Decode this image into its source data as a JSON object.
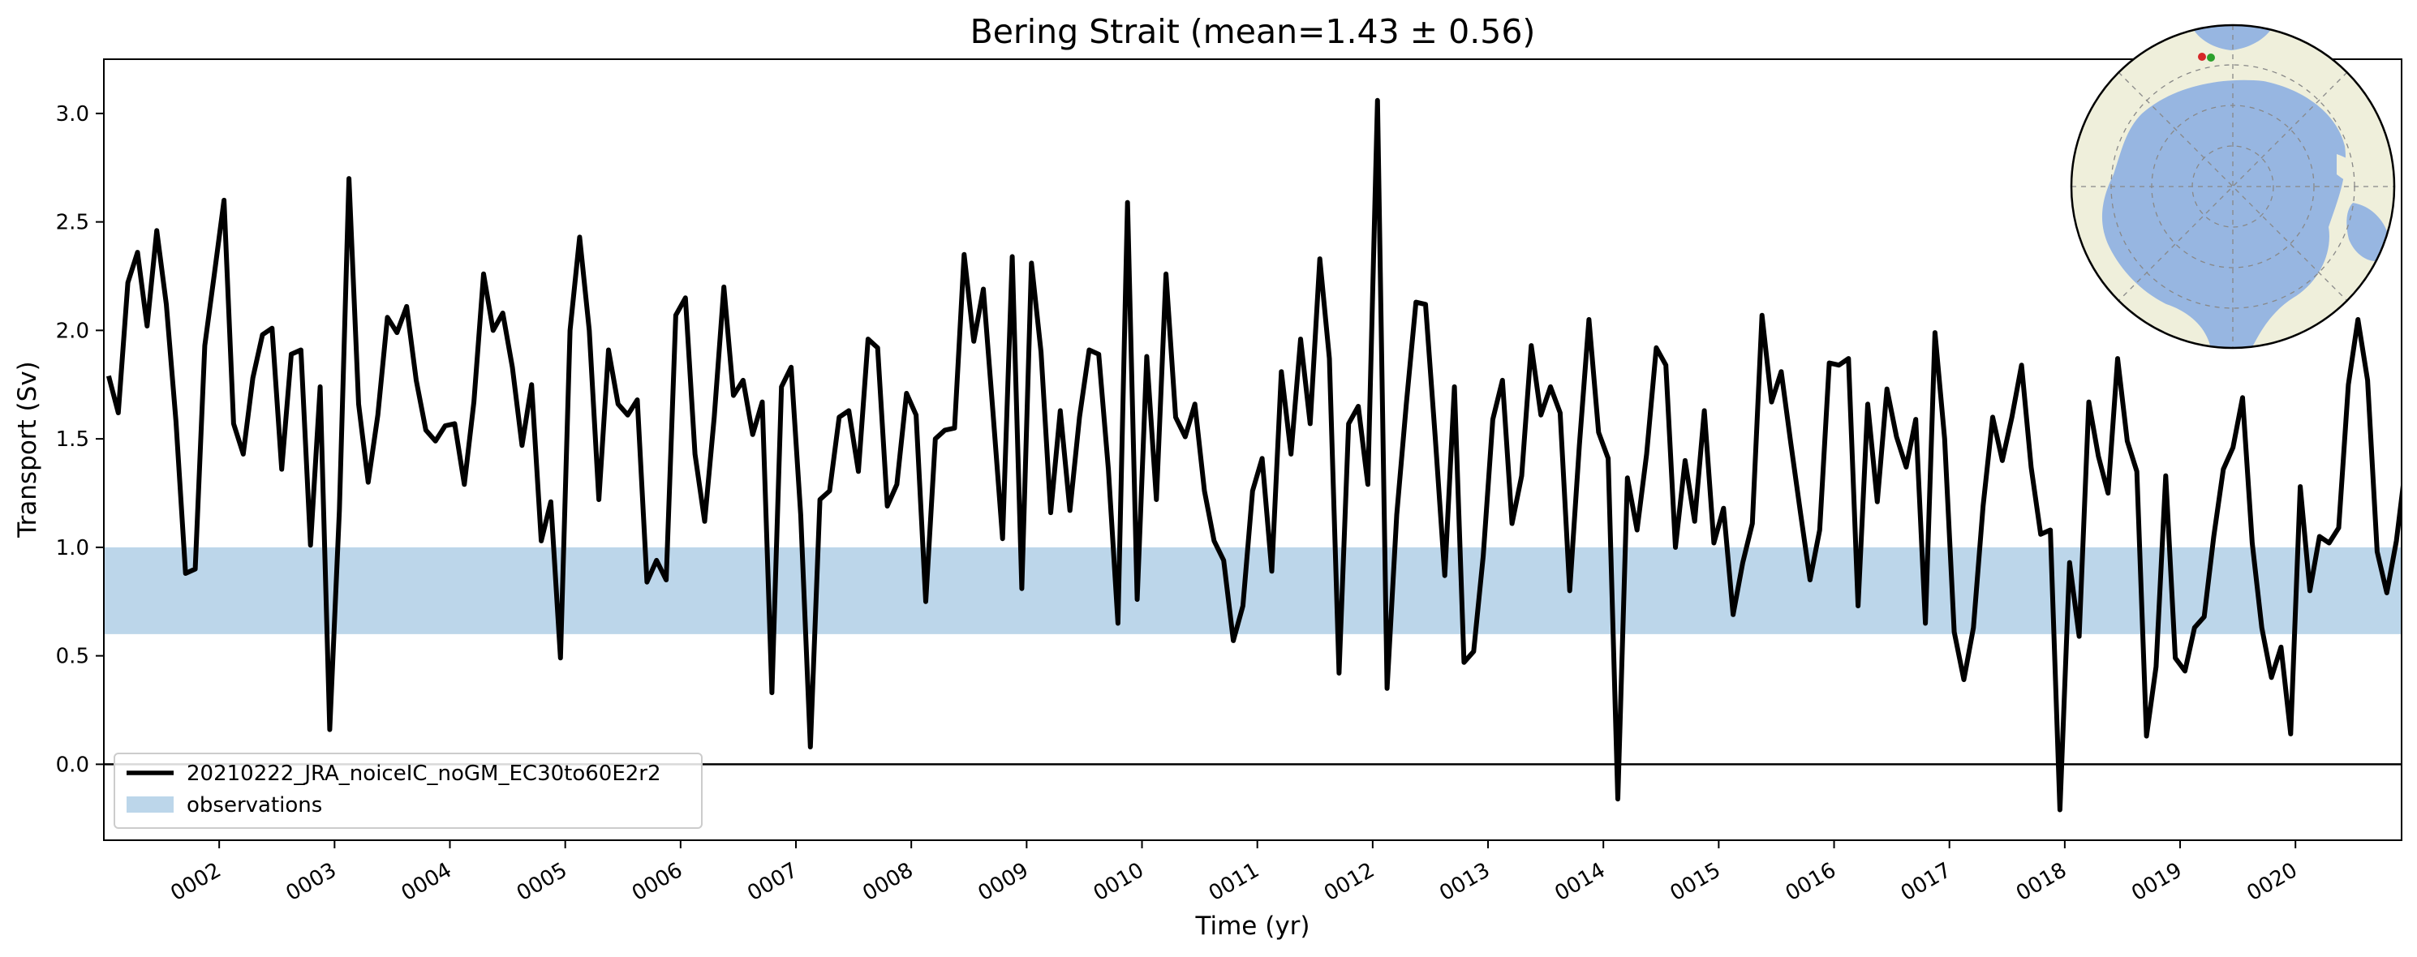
{
  "chart_data": {
    "type": "line",
    "title": "Bering Strait (mean=1.43 ± 0.56)",
    "xlabel": "Time (yr)",
    "ylabel": "Transport (Sv)",
    "xlim": [
      1.0,
      20.92
    ],
    "ylim": [
      -0.35,
      3.25
    ],
    "x_ticks": [
      "0002",
      "0003",
      "0004",
      "0005",
      "0006",
      "0007",
      "0008",
      "0009",
      "0010",
      "0011",
      "0012",
      "0013",
      "0014",
      "0015",
      "0016",
      "0017",
      "0018",
      "0019",
      "0020"
    ],
    "y_ticks": [
      "0.0",
      "0.5",
      "1.0",
      "1.5",
      "2.0",
      "2.5",
      "3.0"
    ],
    "zero_line": 0.0,
    "observations": {
      "name": "observations",
      "low": 0.6,
      "high": 1.0,
      "color": "#bcd6ea"
    },
    "legend_position": "lower-left",
    "series": [
      {
        "name": "20210222_JRA_noiceIC_noGM_EC30to60E2r2",
        "color": "#000000",
        "values": [
          1.79,
          1.62,
          2.22,
          2.36,
          2.02,
          2.46,
          2.12,
          1.58,
          0.88,
          0.9,
          1.93,
          2.26,
          2.6,
          1.57,
          1.43,
          1.78,
          1.98,
          2.01,
          1.36,
          1.89,
          1.91,
          1.01,
          1.74,
          0.16,
          1.17,
          2.7,
          1.66,
          1.3,
          1.61,
          2.06,
          1.99,
          2.11,
          1.77,
          1.54,
          1.49,
          1.56,
          1.57,
          1.29,
          1.67,
          2.26,
          2.0,
          2.08,
          1.83,
          1.47,
          1.75,
          1.03,
          1.21,
          0.49,
          2.0,
          2.43,
          2.0,
          1.22,
          1.91,
          1.66,
          1.61,
          1.68,
          0.84,
          0.94,
          0.85,
          2.07,
          2.15,
          1.43,
          1.12,
          1.6,
          2.2,
          1.7,
          1.77,
          1.52,
          1.67,
          0.33,
          1.74,
          1.83,
          1.15,
          0.08,
          1.22,
          1.26,
          1.6,
          1.63,
          1.35,
          1.96,
          1.92,
          1.19,
          1.29,
          1.71,
          1.61,
          0.75,
          1.5,
          1.54,
          1.55,
          2.35,
          1.95,
          2.19,
          1.62,
          1.04,
          2.34,
          0.81,
          2.31,
          1.9,
          1.16,
          1.63,
          1.17,
          1.6,
          1.91,
          1.89,
          1.36,
          0.65,
          2.59,
          0.76,
          1.88,
          1.22,
          2.26,
          1.6,
          1.51,
          1.66,
          1.26,
          1.03,
          0.94,
          0.57,
          0.73,
          1.26,
          1.41,
          0.89,
          1.81,
          1.43,
          1.96,
          1.57,
          2.33,
          1.87,
          0.42,
          1.57,
          1.65,
          1.29,
          3.06,
          0.35,
          1.15,
          1.66,
          2.13,
          2.12,
          1.51,
          0.87,
          1.74,
          0.47,
          0.52,
          0.96,
          1.59,
          1.77,
          1.11,
          1.33,
          1.93,
          1.61,
          1.74,
          1.62,
          0.8,
          1.47,
          2.05,
          1.53,
          1.41,
          -0.16,
          1.32,
          1.08,
          1.43,
          1.92,
          1.84,
          1.0,
          1.4,
          1.12,
          1.63,
          1.02,
          1.18,
          0.69,
          0.93,
          1.11,
          2.07,
          1.67,
          1.81,
          1.48,
          1.16,
          0.85,
          1.08,
          1.85,
          1.84,
          1.87,
          0.73,
          1.66,
          1.21,
          1.73,
          1.51,
          1.37,
          1.59,
          0.65,
          1.99,
          1.5,
          0.61,
          0.39,
          0.63,
          1.19,
          1.6,
          1.4,
          1.6,
          1.84,
          1.37,
          1.06,
          1.08,
          -0.21,
          0.93,
          0.59,
          1.67,
          1.42,
          1.25,
          1.87,
          1.49,
          1.35,
          0.13,
          0.45,
          1.33,
          0.49,
          0.43,
          0.63,
          0.68,
          1.05,
          1.36,
          1.46,
          1.69,
          1.02,
          0.63,
          0.4,
          0.54,
          0.14,
          1.28,
          0.8,
          1.05,
          1.02,
          1.09,
          1.75,
          2.05,
          1.77,
          0.98,
          0.79,
          1.03,
          1.39
        ]
      }
    ],
    "inset_map": {
      "type": "polar-projection",
      "region": "Arctic",
      "ocean_color": "#97b6e1",
      "land_color": "#efefdb",
      "marker_colors": [
        "#d62728",
        "#2ca02c"
      ]
    }
  }
}
